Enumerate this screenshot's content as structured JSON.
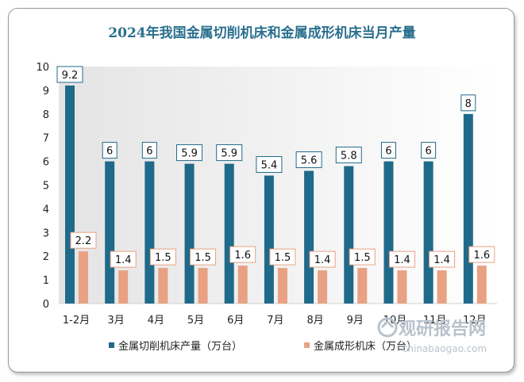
{
  "chart_data": {
    "type": "bar",
    "title": "2024年我国金属切削机床和金属成形机床当月产量",
    "categories": [
      "1-2月",
      "3月",
      "4月",
      "5月",
      "6月",
      "7月",
      "8月",
      "9月",
      "10月",
      "11月",
      "12月"
    ],
    "series": [
      {
        "name": "金属切削机床产量（万台）",
        "color": "#1f6a8a",
        "values": [
          9.2,
          6,
          6,
          5.9,
          5.9,
          5.4,
          5.6,
          5.8,
          6,
          6,
          8
        ],
        "labels": [
          "9.2",
          "6",
          "6",
          "5.9",
          "5.9",
          "5.4",
          "5.6",
          "5.8",
          "6",
          "6",
          "8"
        ]
      },
      {
        "name": "金属成形机床（万台）",
        "color": "#e8a183",
        "values": [
          2.2,
          1.4,
          1.5,
          1.5,
          1.6,
          1.5,
          1.4,
          1.5,
          1.4,
          1.4,
          1.6
        ],
        "labels": [
          "2.2",
          "1.4",
          "1.5",
          "1.5",
          "1.6",
          "1.5",
          "1.4",
          "1.5",
          "1.4",
          "1.4",
          "1.6"
        ]
      }
    ],
    "yticks": [
      0,
      1,
      2,
      3,
      4,
      5,
      6,
      7,
      8,
      9,
      10
    ],
    "ylim": [
      0,
      10
    ],
    "xlabel": "",
    "ylabel": "",
    "legend": "bottom",
    "grid": false
  },
  "watermark": {
    "brand": "观研报告网",
    "url": "chinabaogao.com"
  }
}
